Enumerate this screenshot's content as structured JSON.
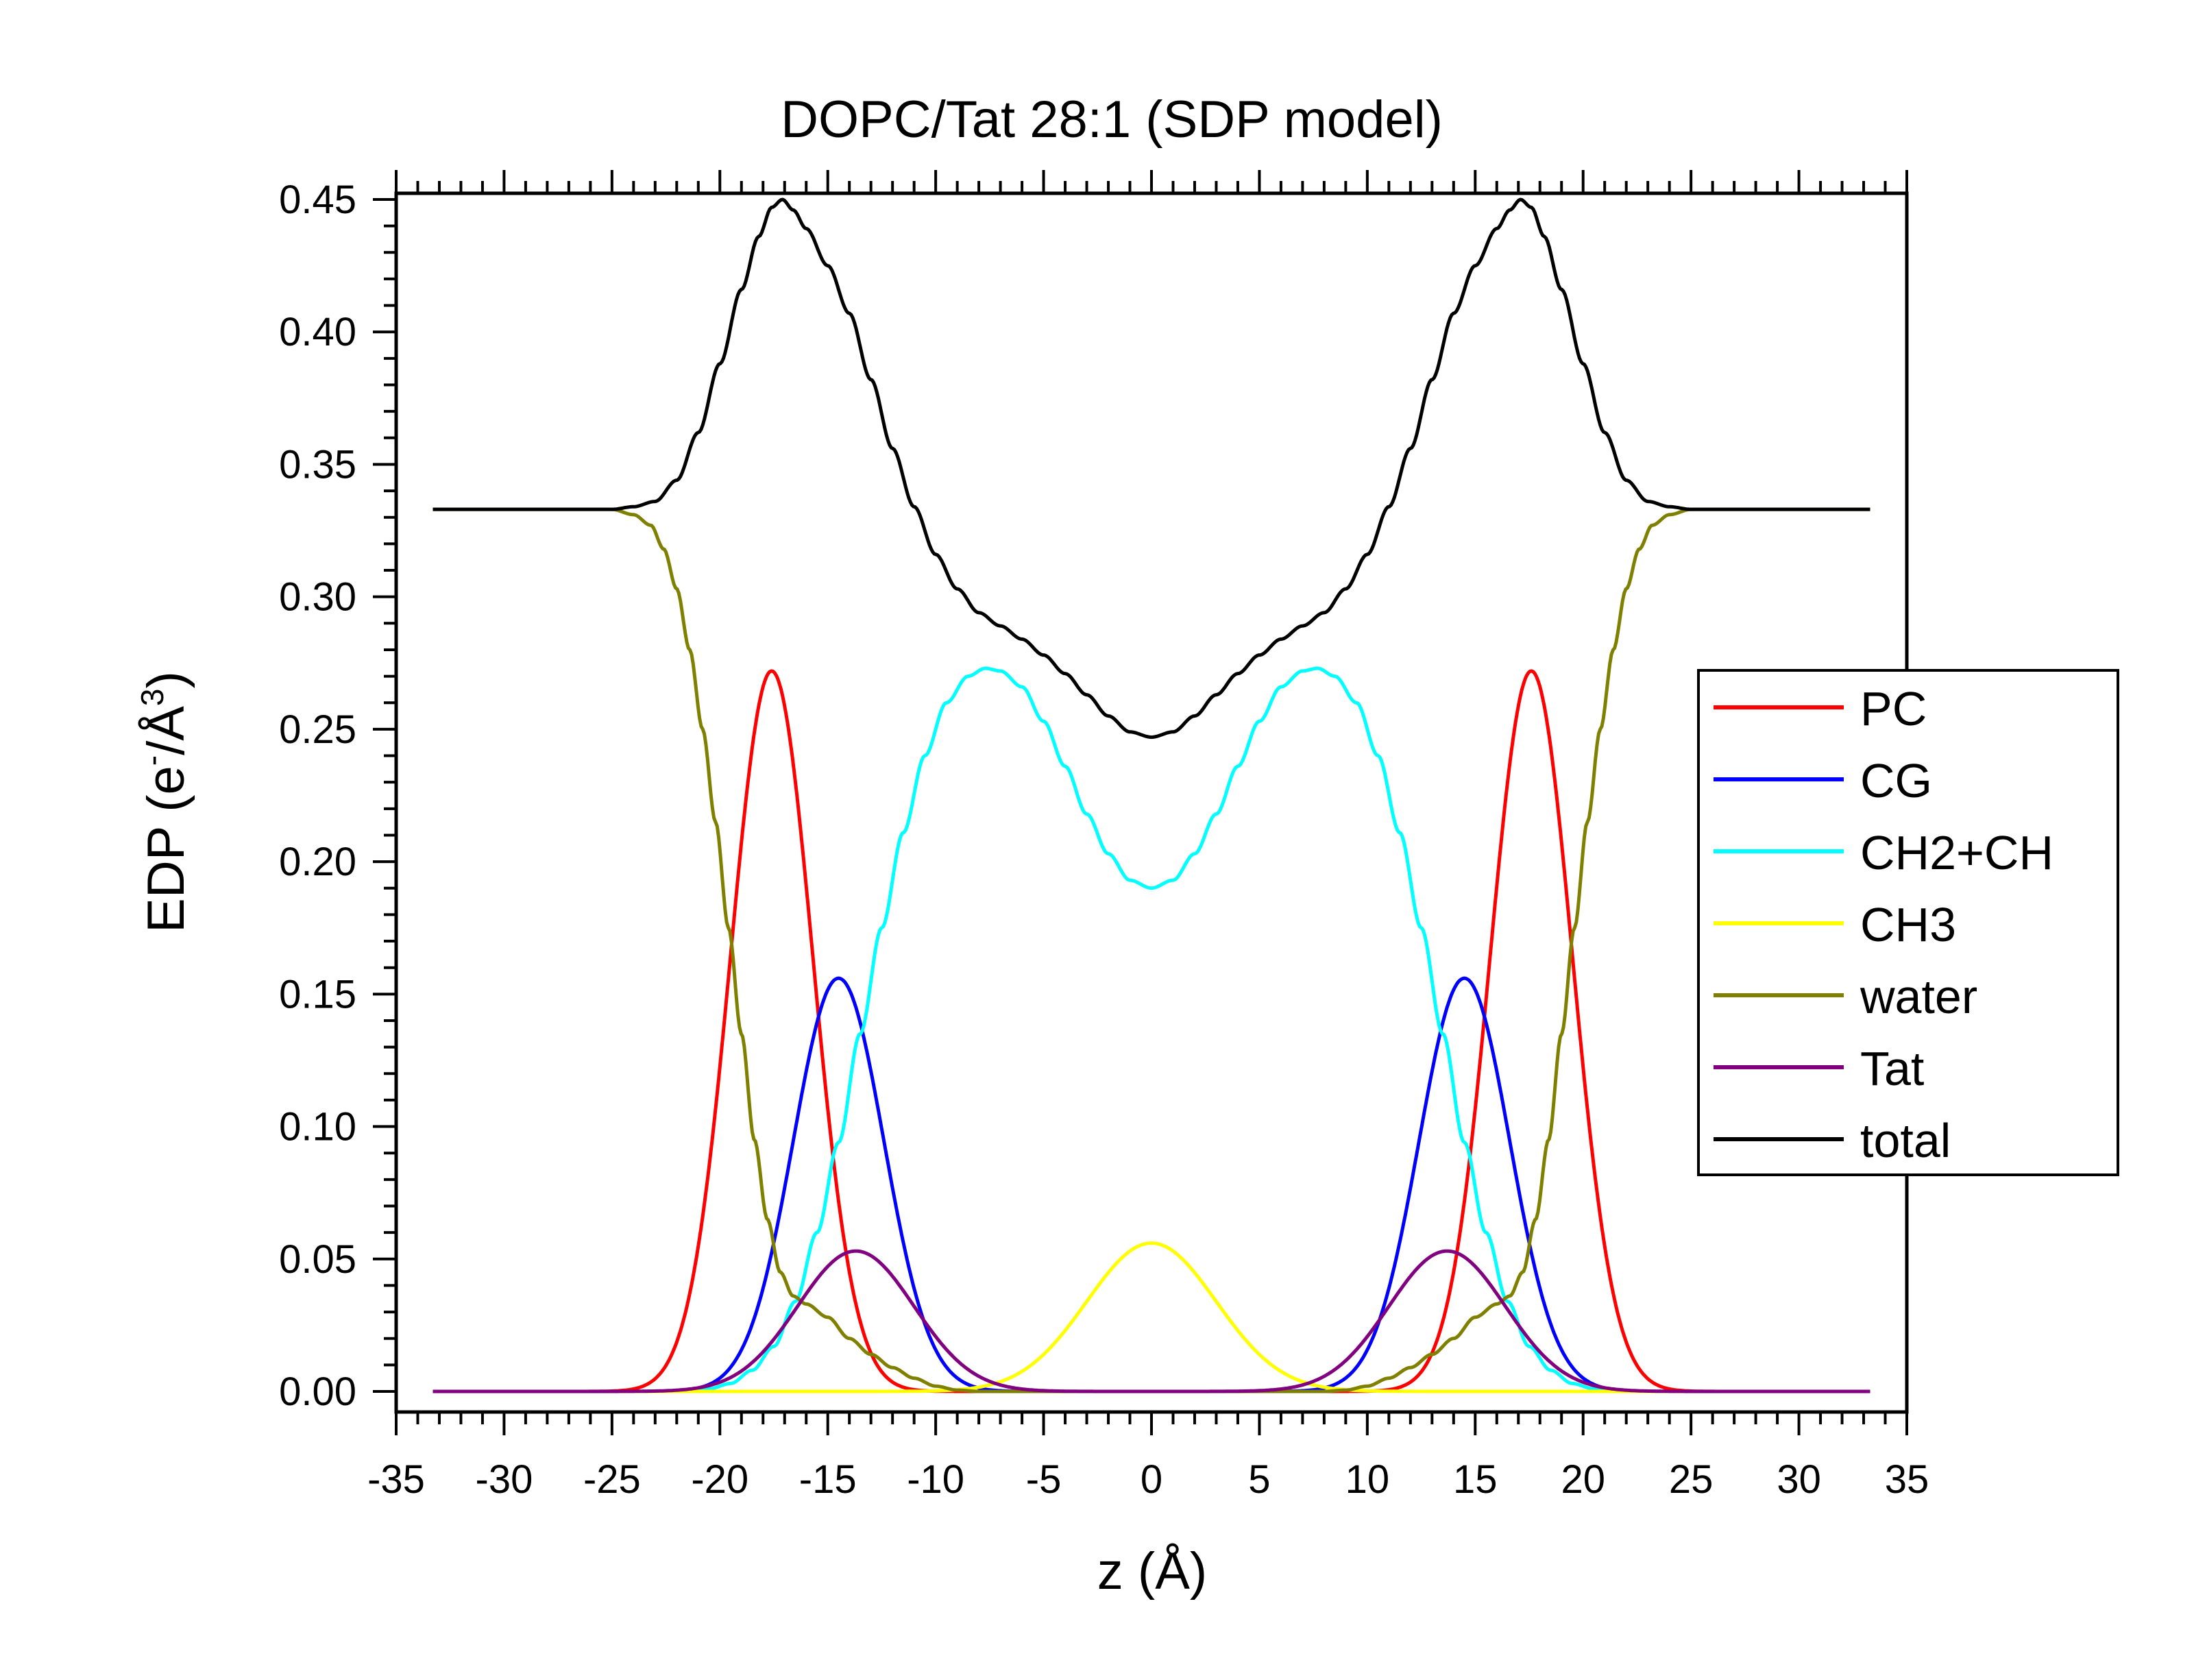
{
  "chart_data": {
    "type": "line",
    "title": "DOPC/Tat 28:1 (SDP model)",
    "xlabel": "z (Å)",
    "ylabel": {
      "main": "EDP (e",
      "sup1": "-",
      "mid": "/Å",
      "sup2": "3",
      "end": ")"
    },
    "xlim": [
      -35,
      35
    ],
    "ylim": [
      -0.01,
      0.45
    ],
    "x_ticks": [
      -35,
      -30,
      -25,
      -20,
      -15,
      -10,
      -5,
      0,
      5,
      10,
      15,
      20,
      25,
      30,
      35
    ],
    "x_tick_labels": [
      "-35",
      "-30",
      "-25",
      "-20",
      "-15",
      "-10",
      "-5",
      "0",
      "5",
      "10",
      "15",
      "20",
      "25",
      "30",
      "35"
    ],
    "y_ticks": [
      0,
      0.05,
      0.1,
      0.15,
      0.2,
      0.25,
      0.3,
      0.35,
      0.4,
      0.45
    ],
    "y_tick_labels": [
      "0.00",
      "0.05",
      "0.10",
      "0.15",
      "0.20",
      "0.25",
      "0.30",
      "0.35",
      "0.40",
      "0.45"
    ],
    "x_range": [
      -33.3,
      33.3
    ],
    "legend_position": "right",
    "grid": false,
    "series": [
      {
        "name": "PC",
        "color": "#ff0000",
        "model": {
          "kind": "gauss_pair",
          "center": 17.6,
          "amp": 0.272,
          "sigma": 1.9
        }
      },
      {
        "name": "CG",
        "color": "#0000ff",
        "model": {
          "kind": "gauss_pair",
          "center": 14.5,
          "amp": 0.156,
          "sigma": 2.1
        }
      },
      {
        "name": "CH2+CH",
        "color": "#00ffff",
        "model": {
          "kind": "points",
          "points": [
            [
              0,
              0.19
            ],
            [
              1,
              0.193
            ],
            [
              2,
              0.203
            ],
            [
              3,
              0.218
            ],
            [
              4,
              0.236
            ],
            [
              5,
              0.253
            ],
            [
              6,
              0.266
            ],
            [
              7,
              0.272
            ],
            [
              7.7,
              0.273
            ],
            [
              8.5,
              0.27
            ],
            [
              9.5,
              0.26
            ],
            [
              10.5,
              0.24
            ],
            [
              11.5,
              0.211
            ],
            [
              12.5,
              0.175
            ],
            [
              13.5,
              0.135
            ],
            [
              14.5,
              0.094
            ],
            [
              15.5,
              0.06
            ],
            [
              16.5,
              0.034
            ],
            [
              17.5,
              0.017
            ],
            [
              18.5,
              0.008
            ],
            [
              19.5,
              0.003
            ],
            [
              20.5,
              0.001
            ],
            [
              21.5,
              0
            ],
            [
              33.3,
              0
            ]
          ]
        }
      },
      {
        "name": "CH3",
        "color": "#ffff00",
        "model": {
          "kind": "gauss_single",
          "center": 0,
          "amp": 0.056,
          "sigma": 3.0
        }
      },
      {
        "name": "water",
        "color": "#808000",
        "model": {
          "kind": "points",
          "points": [
            [
              0,
              0
            ],
            [
              8,
              0
            ],
            [
              9,
              0.0005
            ],
            [
              10,
              0.002
            ],
            [
              11,
              0.005
            ],
            [
              12,
              0.009
            ],
            [
              13,
              0.014
            ],
            [
              14,
              0.02
            ],
            [
              15,
              0.028
            ],
            [
              16,
              0.033
            ],
            [
              16.6,
              0.036
            ],
            [
              17.2,
              0.045
            ],
            [
              17.8,
              0.065
            ],
            [
              18.4,
              0.095
            ],
            [
              19,
              0.135
            ],
            [
              19.6,
              0.175
            ],
            [
              20.2,
              0.215
            ],
            [
              20.8,
              0.25
            ],
            [
              21.4,
              0.28
            ],
            [
              22,
              0.303
            ],
            [
              22.6,
              0.318
            ],
            [
              23.2,
              0.327
            ],
            [
              24,
              0.331
            ],
            [
              25,
              0.333
            ],
            [
              33.3,
              0.333
            ]
          ]
        }
      },
      {
        "name": "Tat",
        "color": "#800080",
        "model": {
          "kind": "gauss_pair",
          "center": 13.7,
          "amp": 0.053,
          "sigma": 2.7
        }
      },
      {
        "name": "total",
        "color": "#000000",
        "model": {
          "kind": "points",
          "points": [
            [
              0,
              0.247
            ],
            [
              1,
              0.249
            ],
            [
              2,
              0.255
            ],
            [
              3,
              0.263
            ],
            [
              4,
              0.271
            ],
            [
              5,
              0.278
            ],
            [
              6,
              0.284
            ],
            [
              7,
              0.289
            ],
            [
              8,
              0.294
            ],
            [
              9,
              0.303
            ],
            [
              10,
              0.316
            ],
            [
              11,
              0.334
            ],
            [
              12,
              0.356
            ],
            [
              13,
              0.382
            ],
            [
              14,
              0.407
            ],
            [
              15,
              0.425
            ],
            [
              16,
              0.439
            ],
            [
              16.6,
              0.446
            ],
            [
              17.1,
              0.45
            ],
            [
              17.6,
              0.447
            ],
            [
              18.2,
              0.436
            ],
            [
              19,
              0.416
            ],
            [
              20,
              0.388
            ],
            [
              21,
              0.362
            ],
            [
              22,
              0.344
            ],
            [
              23,
              0.336
            ],
            [
              24,
              0.334
            ],
            [
              25,
              0.333
            ],
            [
              33.3,
              0.333
            ]
          ]
        }
      }
    ]
  }
}
